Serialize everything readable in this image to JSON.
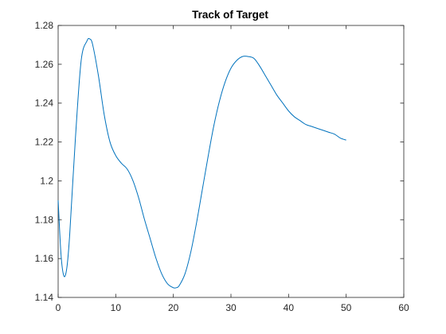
{
  "chart_data": {
    "type": "line",
    "title": "Track of Target",
    "xlabel": "",
    "ylabel": "",
    "xlim": [
      0,
      60
    ],
    "ylim": [
      1.14,
      1.28
    ],
    "x_ticks": [
      0,
      10,
      20,
      30,
      40,
      50,
      60
    ],
    "x_tick_labels": [
      "0",
      "10",
      "20",
      "30",
      "40",
      "50",
      "60"
    ],
    "y_ticks": [
      1.14,
      1.16,
      1.18,
      1.2,
      1.22,
      1.24,
      1.26,
      1.28
    ],
    "y_tick_labels": [
      "1.14",
      "1.16",
      "1.18",
      "1.2",
      "1.22",
      "1.24",
      "1.26",
      "1.28"
    ],
    "grid": false,
    "line_color": "#0072BD",
    "series": [
      {
        "x": [
          0,
          0.5,
          1,
          1.5,
          2,
          3,
          4,
          5,
          5.5,
          6,
          7,
          8,
          9,
          10,
          11,
          12,
          13,
          14,
          15,
          16,
          17,
          18,
          19,
          20,
          20.5,
          21,
          22,
          23,
          24,
          25,
          26,
          27,
          28,
          29,
          30,
          31,
          32,
          33,
          34,
          35,
          36,
          37,
          38,
          39,
          40,
          41,
          42,
          43,
          44,
          45,
          46,
          47,
          48,
          49,
          50
        ],
        "y": [
          1.19,
          1.162,
          1.151,
          1.155,
          1.172,
          1.222,
          1.262,
          1.272,
          1.273,
          1.27,
          1.254,
          1.234,
          1.22,
          1.213,
          1.209,
          1.206,
          1.2,
          1.191,
          1.18,
          1.17,
          1.16,
          1.152,
          1.147,
          1.145,
          1.145,
          1.146,
          1.152,
          1.163,
          1.178,
          1.195,
          1.212,
          1.228,
          1.241,
          1.251,
          1.258,
          1.262,
          1.264,
          1.264,
          1.263,
          1.259,
          1.254,
          1.249,
          1.244,
          1.24,
          1.236,
          1.233,
          1.231,
          1.229,
          1.228,
          1.227,
          1.226,
          1.225,
          1.224,
          1.222,
          1.221
        ]
      }
    ]
  }
}
